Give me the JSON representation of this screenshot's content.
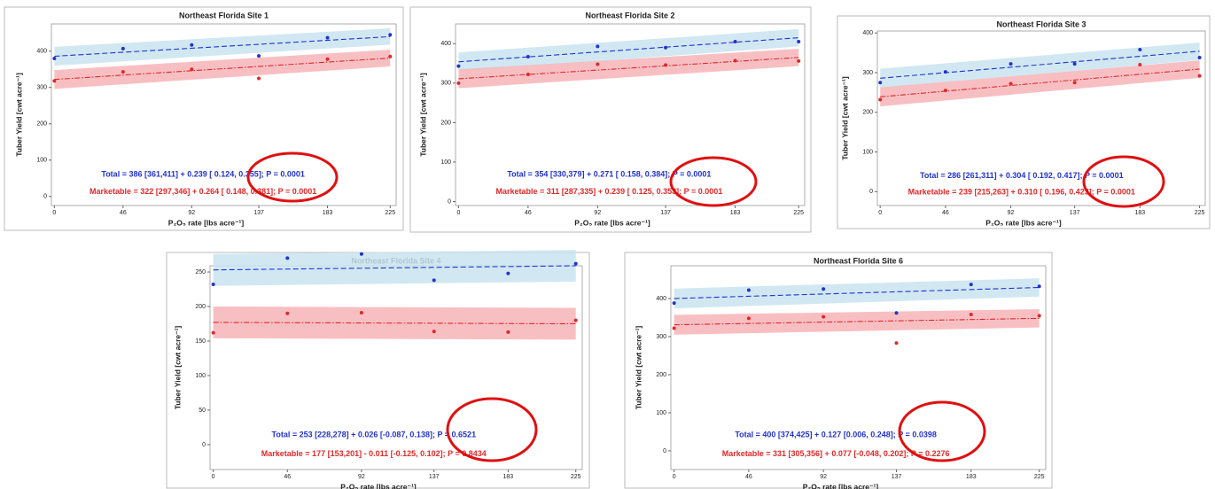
{
  "chart_data": [
    {
      "type": "scatter",
      "title": "Northeast Florida Site 1",
      "xlabel": "P₂O₅ rate [lbs acre⁻¹]",
      "ylabel": "Tuber Yield [cwt acre⁻¹]",
      "x": [
        0,
        46,
        92,
        137,
        183,
        225
      ],
      "xlim": [
        -2,
        229
      ],
      "xticks": [
        0,
        46,
        92,
        137,
        183,
        225
      ],
      "ylim": [
        -25,
        475
      ],
      "yticks": [
        0,
        100,
        200,
        300,
        400
      ],
      "series": [
        {
          "color": "#2233cc",
          "band_color": "#c9e4f1",
          "values": [
            380,
            407,
            417,
            387,
            437,
            445
          ],
          "fit": [
            386,
            440
          ],
          "fit_lower": [
            360,
            418
          ],
          "fit_upper": [
            412,
            463
          ]
        },
        {
          "color": "#e02828",
          "band_color": "#f7b4b8",
          "values": [
            318,
            343,
            350,
            325,
            378,
            385
          ],
          "fit": [
            322,
            381
          ],
          "fit_lower": [
            296,
            358
          ],
          "fit_upper": [
            348,
            404
          ]
        }
      ],
      "annotations": [
        {
          "text": "Total = 386 [361,411] + 0.239 [ 0.124, 0.355]; P = 0.0001",
          "color": "#2233cc"
        },
        {
          "text": "Marketable = 322 [297,346] + 0.264 [ 0.148, 0.381]; P = 0.0001",
          "color": "#e02828"
        }
      ]
    },
    {
      "type": "scatter",
      "title": "Northeast Florida Site 2",
      "xlabel": "P₂O₅ rate [lbs acre⁻¹]",
      "ylabel": "Tuber Yield [cwt acre⁻¹]",
      "x": [
        0,
        46,
        92,
        137,
        183,
        225
      ],
      "xlim": [
        -2,
        229
      ],
      "xticks": [
        0,
        46,
        92,
        137,
        183,
        225
      ],
      "ylim": [
        -10,
        450
      ],
      "yticks": [
        0,
        100,
        200,
        300,
        400
      ],
      "series": [
        {
          "color": "#2233cc",
          "band_color": "#c9e4f1",
          "values": [
            343,
            367,
            393,
            390,
            405,
            405
          ],
          "fit": [
            354,
            415
          ],
          "fit_lower": [
            330,
            393
          ],
          "fit_upper": [
            378,
            437
          ]
        },
        {
          "color": "#e02828",
          "band_color": "#f7b4b8",
          "values": [
            300,
            322,
            348,
            346,
            357,
            356
          ],
          "fit": [
            311,
            365
          ],
          "fit_lower": [
            287,
            343
          ],
          "fit_upper": [
            335,
            387
          ]
        }
      ],
      "annotations": [
        {
          "text": "Total = 354 [330,379] + 0.271 [ 0.158, 0.384]; P = 0.0001",
          "color": "#2233cc"
        },
        {
          "text": "Marketable = 311 [287,335] + 0.239 [ 0.125, 0.353]; P = 0.0001",
          "color": "#e02828"
        }
      ]
    },
    {
      "type": "scatter",
      "title": "Northeast Florida Site 3",
      "xlabel": "P₂O₅ rate [lbs acre⁻¹]",
      "ylabel": "Tuber Yield [cwt acre⁻¹]",
      "x": [
        0,
        46,
        92,
        137,
        183,
        225
      ],
      "xlim": [
        -2,
        229
      ],
      "xticks": [
        0,
        46,
        92,
        137,
        183,
        225
      ],
      "ylim": [
        -35,
        405
      ],
      "yticks": [
        0,
        100,
        200,
        300,
        400
      ],
      "series": [
        {
          "color": "#2233cc",
          "band_color": "#c9e4f1",
          "values": [
            275,
            302,
            322,
            322,
            358,
            338
          ],
          "fit": [
            286,
            354
          ],
          "fit_lower": [
            262,
            332
          ],
          "fit_upper": [
            310,
            376
          ]
        },
        {
          "color": "#e02828",
          "band_color": "#f7b4b8",
          "values": [
            232,
            255,
            272,
            275,
            320,
            292
          ],
          "fit": [
            239,
            309
          ],
          "fit_lower": [
            215,
            287
          ],
          "fit_upper": [
            263,
            331
          ]
        }
      ],
      "annotations": [
        {
          "text": "Total = 286 [261,311] + 0.304 [ 0.192, 0.417]; P = 0.0001",
          "color": "#2233cc"
        },
        {
          "text": "Marketable = 239 [215,263] + 0.310 [ 0.196, 0.423]; P = 0.0001",
          "color": "#e02828"
        }
      ]
    },
    {
      "type": "scatter",
      "title": "Northeast Florida Site 4",
      "xlabel": "P₂O₅ rate [lbs acre⁻¹]",
      "ylabel": "Tuber Yield [cwt acre⁻¹]",
      "x": [
        0,
        46,
        92,
        137,
        183,
        225
      ],
      "xlim": [
        -2,
        229
      ],
      "xticks": [
        0,
        46,
        92,
        137,
        183,
        225
      ],
      "ylim": [
        -36,
        259
      ],
      "yticks": [
        0,
        50,
        100,
        150,
        200,
        250
      ],
      "series": [
        {
          "color": "#2233cc",
          "band_color": "#c9e4f1",
          "values": [
            232,
            270,
            276,
            238,
            248,
            262
          ],
          "fit": [
            253,
            259
          ],
          "fit_lower": [
            230,
            236
          ],
          "fit_upper": [
            276,
            282
          ]
        },
        {
          "color": "#e02828",
          "band_color": "#f7b4b8",
          "values": [
            162,
            190,
            191,
            164,
            163,
            180
          ],
          "fit": [
            177,
            175
          ],
          "fit_lower": [
            154,
            152
          ],
          "fit_upper": [
            200,
            198
          ]
        }
      ],
      "annotations": [
        {
          "text": "Total = 253 [228,278] + 0.026 [-0.087, 0.138]; P = 0.6521",
          "color": "#2233cc"
        },
        {
          "text": "Marketable = 177 [153,201] - 0.011 [-0.125, 0.102]; P = 0.8434",
          "color": "#e02828"
        }
      ]
    },
    {
      "type": "scatter",
      "title": "Northeast Florida Site 6",
      "xlabel": "P₂O₅ rate [lbs acre⁻¹]",
      "ylabel": "Tuber Yield [cwt acre⁻¹]",
      "x": [
        0,
        46,
        92,
        137,
        183,
        225
      ],
      "xlim": [
        -2,
        229
      ],
      "xticks": [
        0,
        46,
        92,
        137,
        183,
        225
      ],
      "ylim": [
        -49,
        486
      ],
      "yticks": [
        0,
        100,
        200,
        300,
        400
      ],
      "series": [
        {
          "color": "#2233cc",
          "band_color": "#c9e4f1",
          "values": [
            388,
            422,
            425,
            362,
            437,
            432
          ],
          "fit": [
            400,
            429
          ],
          "fit_lower": [
            374,
            405
          ],
          "fit_upper": [
            426,
            453
          ]
        },
        {
          "color": "#e02828",
          "band_color": "#f7b4b8",
          "values": [
            322,
            348,
            352,
            283,
            358,
            355
          ],
          "fit": [
            331,
            348
          ],
          "fit_lower": [
            305,
            324
          ],
          "fit_upper": [
            357,
            372
          ]
        }
      ],
      "annotations": [
        {
          "text": "Total = 400 [374,425] + 0.127 [0.006, 0.248]; P = 0.0398",
          "color": "#2233cc"
        },
        {
          "text": "Marketable = 331 [305,356] + 0.077 [-0.048, 0.202]; P = 0.2276",
          "color": "#e02828"
        }
      ]
    }
  ]
}
